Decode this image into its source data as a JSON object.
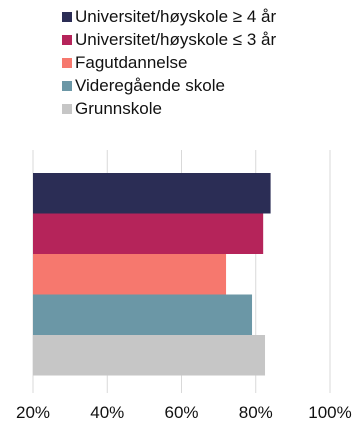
{
  "chart_data": {
    "type": "bar",
    "orientation": "horizontal",
    "categories": [
      "Universitet/høyskole ≥ 4 år",
      "Universitet/høyskole ≤ 3 år",
      "Fagutdannelse",
      "Videregående skole",
      "Grunnskole"
    ],
    "values": [
      84,
      82,
      72,
      79,
      82.5
    ],
    "colors": [
      "#2b2d55",
      "#b5245a",
      "#f6786e",
      "#6b97a6",
      "#c6c6c6"
    ],
    "xlim": [
      20,
      100
    ],
    "xticks": [
      20,
      40,
      60,
      80,
      100
    ],
    "xtick_labels": [
      "20%",
      "40%",
      "60%",
      "80%",
      "100%"
    ],
    "grid": true,
    "legend_position": "top"
  }
}
